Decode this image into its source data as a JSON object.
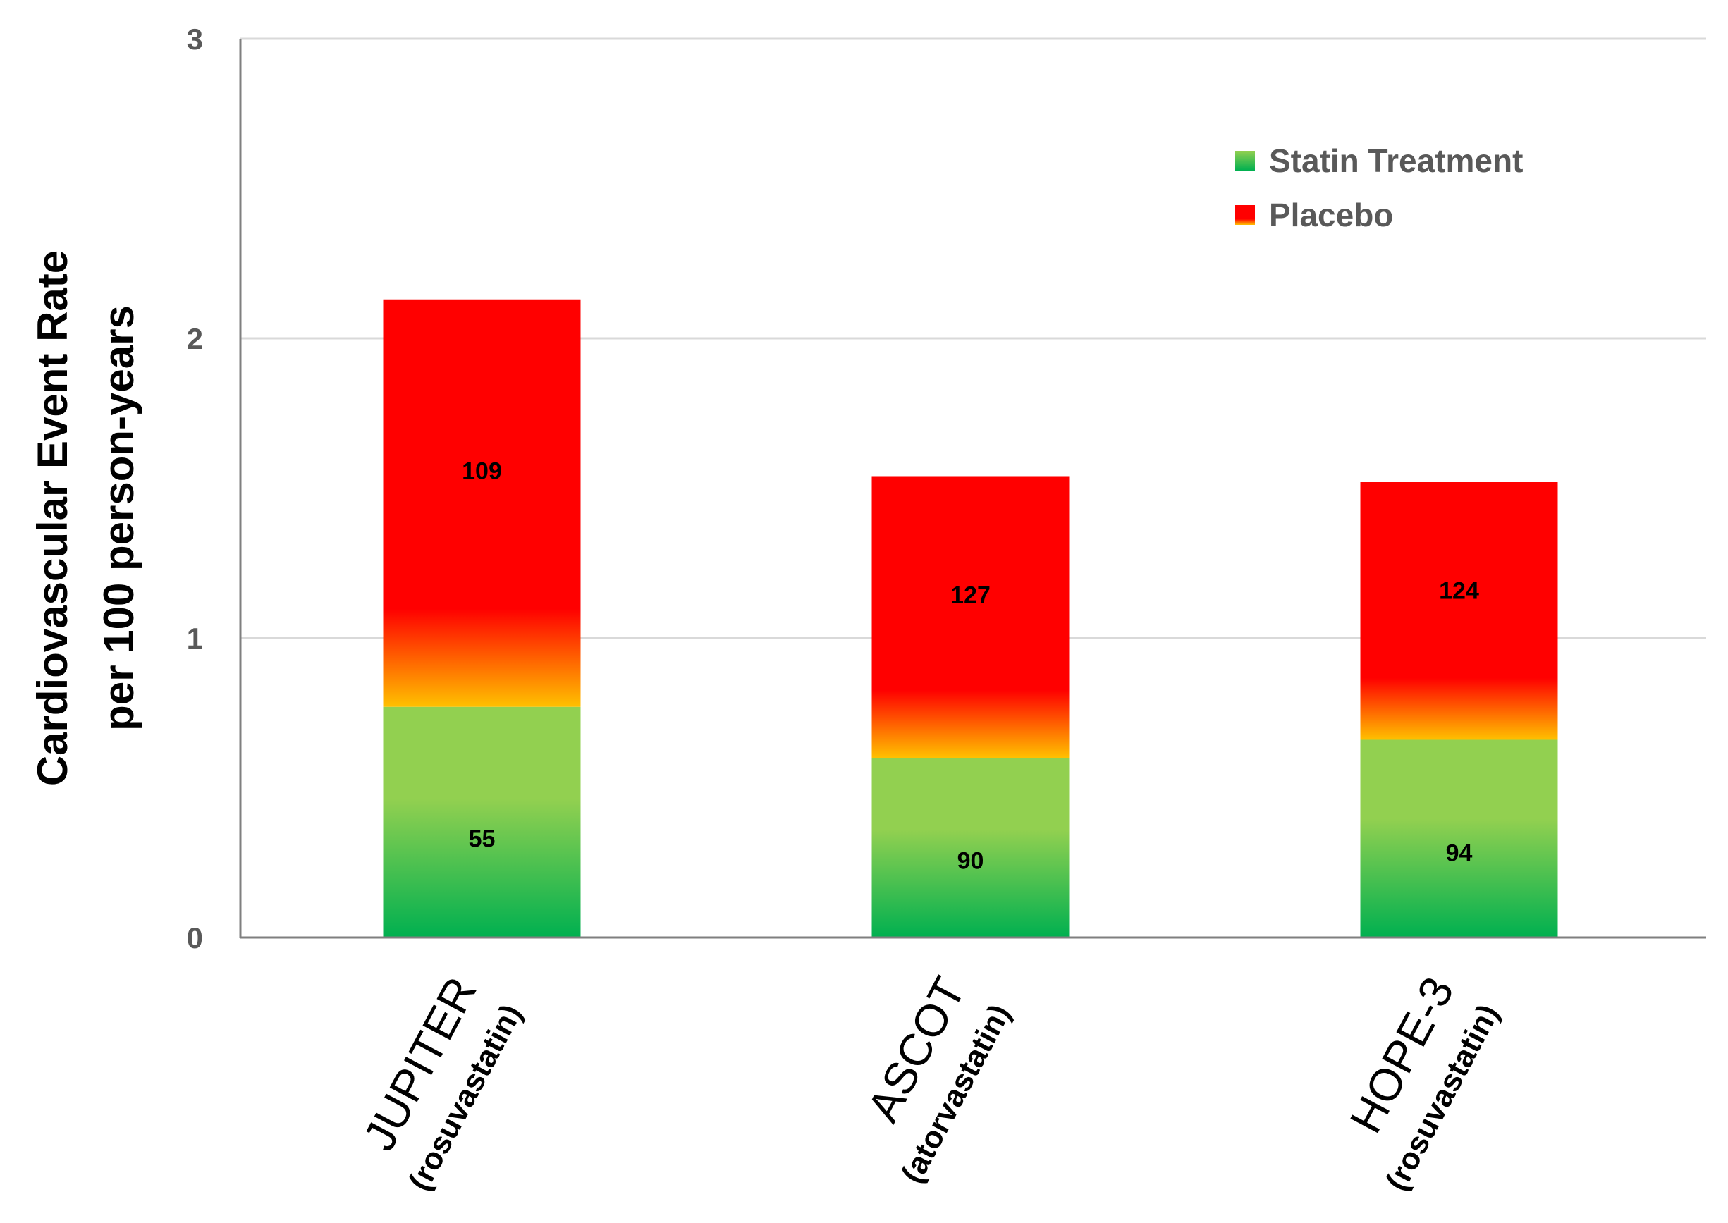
{
  "chart_data": {
    "type": "bar",
    "stacked": true,
    "ylabel": "Cardiovascular Event Rate\nper 100 person-years",
    "xlabel": "",
    "ylim": [
      0,
      3
    ],
    "yticks": [
      0,
      1,
      2,
      3
    ],
    "grid": true,
    "legend_position": "top-right",
    "categories": [
      {
        "name": "JUPITER",
        "drug": "(rosuvastatin)"
      },
      {
        "name": "ASCOT",
        "drug": "(atorvastatin)"
      },
      {
        "name": "HOPE-3",
        "drug": "(rosuvastatin)"
      }
    ],
    "series": [
      {
        "name": "Statin Treatment",
        "values": [
          0.77,
          0.6,
          0.66
        ],
        "labels": [
          "55",
          "90",
          "94"
        ],
        "color_top": "#92d050",
        "color_bottom": "#00b050"
      },
      {
        "name": "Placebo",
        "values": [
          1.36,
          0.94,
          0.86
        ],
        "labels": [
          "109",
          "127",
          "124"
        ],
        "color_top": "#ff0000",
        "color_bottom": "#ffc000"
      }
    ]
  }
}
